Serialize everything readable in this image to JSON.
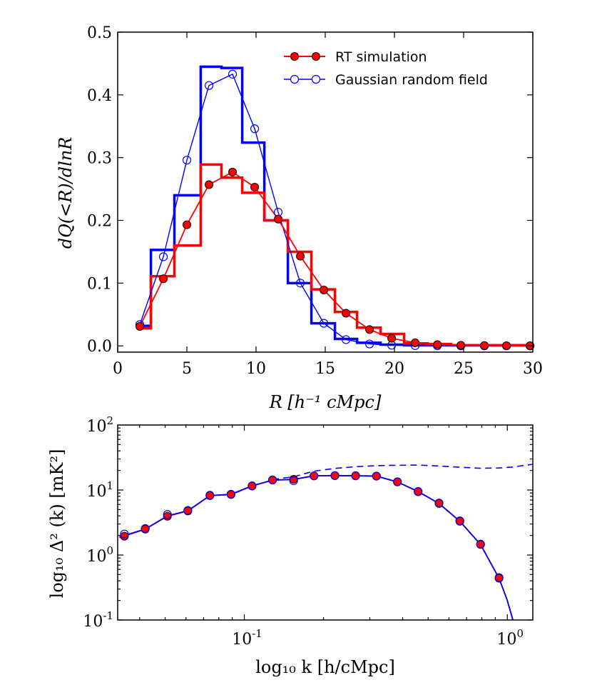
{
  "chart_data": [
    {
      "type": "line",
      "title": "",
      "xlabel": "R [h⁻¹ cMpc]",
      "ylabel": "dQ(<R)/dlnR",
      "xlim": [
        0,
        30
      ],
      "ylim": [
        -0.01,
        0.5
      ],
      "xticks": [
        "0",
        "5",
        "10",
        "15",
        "20",
        "25",
        "30"
      ],
      "yticks": [
        "0.0",
        "0.1",
        "0.2",
        "0.3",
        "0.4",
        "0.5"
      ],
      "legend": {
        "placement": "top-right",
        "entries": [
          {
            "label": "RT simulation",
            "color": "#ff0000",
            "marker": "filled-circle"
          },
          {
            "label": "Gaussian random field",
            "color": "#0000ff",
            "marker": "open-circle"
          }
        ]
      },
      "series": [
        {
          "name": "RT simulation",
          "color": "#ff0000",
          "x": [
            1.6,
            3.3,
            5.0,
            6.6,
            8.3,
            9.9,
            11.6,
            13.2,
            14.9,
            16.5,
            18.2,
            19.8,
            21.5,
            23.1,
            24.8,
            26.5,
            28.1,
            29.8
          ],
          "y": [
            0.031,
            0.107,
            0.193,
            0.257,
            0.277,
            0.253,
            0.202,
            0.143,
            0.089,
            0.052,
            0.026,
            0.012,
            0.005,
            0.002,
            0.001,
            0.0005,
            0.0003,
            0.0001
          ]
        },
        {
          "name": "Gaussian random field",
          "color": "#0000ff",
          "x": [
            1.6,
            3.3,
            5.0,
            6.6,
            8.3,
            9.9,
            11.6,
            13.2,
            14.9,
            16.5,
            18.2,
            19.8,
            21.5,
            23.1,
            24.8,
            26.5,
            28.1,
            29.8
          ],
          "y": [
            0.034,
            0.142,
            0.296,
            0.415,
            0.433,
            0.346,
            0.213,
            0.1,
            0.036,
            0.01,
            0.003,
            0.001,
            0.0005,
            0.0002,
            0.0001,
            0.0,
            0.0,
            0.0
          ]
        },
        {
          "name": "RT simulation histogram",
          "style": "step",
          "color": "#ff0000",
          "edges": [
            1.5,
            2.4,
            4.1,
            6.0,
            7.5,
            9.0,
            10.6,
            12.3,
            14.0,
            15.7,
            17.3,
            19.0,
            20.7,
            22.4,
            24.1,
            25.8,
            27.5,
            29.2,
            30.0
          ],
          "values": [
            0.028,
            0.111,
            0.16,
            0.289,
            0.268,
            0.244,
            0.2,
            0.15,
            0.09,
            0.054,
            0.029,
            0.019,
            0.004,
            0.003,
            0.001,
            0.001,
            0.001,
            0.001
          ]
        },
        {
          "name": "Gaussian random field histogram",
          "style": "step",
          "color": "#0000ff",
          "edges": [
            1.5,
            2.4,
            4.1,
            6.0,
            7.5,
            9.0,
            10.6,
            12.3,
            14.0,
            15.7,
            17.3,
            19.0,
            20.7,
            22.4,
            24.1,
            25.8,
            27.5,
            29.2,
            30.0
          ],
          "values": [
            0.032,
            0.153,
            0.24,
            0.445,
            0.443,
            0.324,
            0.2,
            0.1,
            0.036,
            0.011,
            0.005,
            0.002,
            0.001,
            0.001,
            0.001,
            0.001,
            0.001,
            0.001
          ]
        }
      ]
    },
    {
      "type": "line",
      "title": "",
      "xlabel": "log₁₀ k [h/cMpc]",
      "ylabel": "log₁₀ Δ² (k) [mK²]",
      "xscale": "log",
      "yscale": "log",
      "xlim": [
        0.033,
        1.25
      ],
      "ylim": [
        0.1,
        100
      ],
      "xticks": [
        {
          "value": 0.1,
          "base": "10",
          "exp": "-1"
        },
        {
          "value": 1.0,
          "base": "10",
          "exp": "0"
        }
      ],
      "yticks": [
        {
          "value": 0.1,
          "base": "10",
          "exp": "-1"
        },
        {
          "value": 1,
          "base": "10",
          "exp": "0"
        },
        {
          "value": 10,
          "base": "10",
          "exp": "1"
        },
        {
          "value": 100,
          "base": "10",
          "exp": "2"
        }
      ],
      "series": [
        {
          "name": "RT simulation",
          "color": "#ff0000",
          "marker": "filled-circle",
          "x": [
            0.035,
            0.042,
            0.051,
            0.061,
            0.074,
            0.089,
            0.107,
            0.128,
            0.154,
            0.184,
            0.221,
            0.265,
            0.318,
            0.382,
            0.458,
            0.55,
            0.66,
            0.791,
            0.93
          ],
          "y": [
            1.95,
            2.5,
            3.95,
            4.75,
            8.2,
            8.5,
            11.5,
            14.2,
            14.6,
            16.5,
            16.6,
            16.5,
            16.3,
            13.3,
            9.4,
            6.2,
            3.3,
            1.45,
            0.44
          ]
        },
        {
          "name": "Gaussian random field",
          "color": "#0000ff",
          "marker": "open-circle",
          "x": [
            0.035,
            0.042,
            0.051,
            0.061,
            0.074,
            0.089,
            0.107,
            0.128,
            0.154,
            0.184,
            0.221,
            0.265,
            0.318,
            0.382,
            0.458,
            0.55,
            0.66,
            0.791,
            0.93
          ],
          "y": [
            2.1,
            2.55,
            4.2,
            4.85,
            8.3,
            8.6,
            11.6,
            14.3,
            13.9,
            16.5,
            16.7,
            16.6,
            16.4,
            13.4,
            9.5,
            6.3,
            3.35,
            1.47,
            0.45
          ]
        },
        {
          "name": "RT simulation curve",
          "color": "#ff0000",
          "style": "solid",
          "x": [
            0.0335,
            0.035,
            0.042,
            0.051,
            0.061,
            0.074,
            0.089,
            0.107,
            0.128,
            0.154,
            0.184,
            0.221,
            0.265,
            0.318,
            0.382,
            0.458,
            0.55,
            0.66,
            0.791,
            0.93,
            1.0,
            1.05
          ],
          "y": [
            1.85,
            1.95,
            2.5,
            3.95,
            4.75,
            8.2,
            8.5,
            11.5,
            14.2,
            14.6,
            16.5,
            16.6,
            16.5,
            16.3,
            13.3,
            9.4,
            6.2,
            3.3,
            1.45,
            0.44,
            0.2,
            0.1
          ]
        },
        {
          "name": "Gaussian random field curve",
          "color": "#0000ff",
          "style": "solid",
          "x": [
            0.0335,
            0.035,
            0.042,
            0.051,
            0.061,
            0.074,
            0.089,
            0.107,
            0.128,
            0.154,
            0.184,
            0.221,
            0.265,
            0.318,
            0.382,
            0.458,
            0.55,
            0.66,
            0.791,
            0.93,
            1.0,
            1.05
          ],
          "y": [
            1.9,
            2.0,
            2.5,
            4.0,
            4.8,
            8.2,
            8.6,
            11.6,
            14.2,
            14.5,
            16.6,
            16.7,
            16.6,
            16.4,
            13.3,
            9.5,
            6.2,
            3.3,
            1.45,
            0.44,
            0.2,
            0.1
          ]
        },
        {
          "name": "Gaussian random field (dashed)",
          "color": "#0000ff",
          "style": "dashed",
          "x": [
            0.128,
            0.154,
            0.184,
            0.221,
            0.265,
            0.318,
            0.382,
            0.458,
            0.55,
            0.66,
            0.791,
            0.93,
            1.05,
            1.15,
            1.25
          ],
          "y": [
            14.5,
            16.0,
            19.5,
            21.5,
            22.8,
            23.7,
            24.0,
            24.2,
            23.4,
            22.4,
            21.6,
            21.8,
            22.6,
            23.8,
            24.8
          ]
        }
      ]
    }
  ]
}
